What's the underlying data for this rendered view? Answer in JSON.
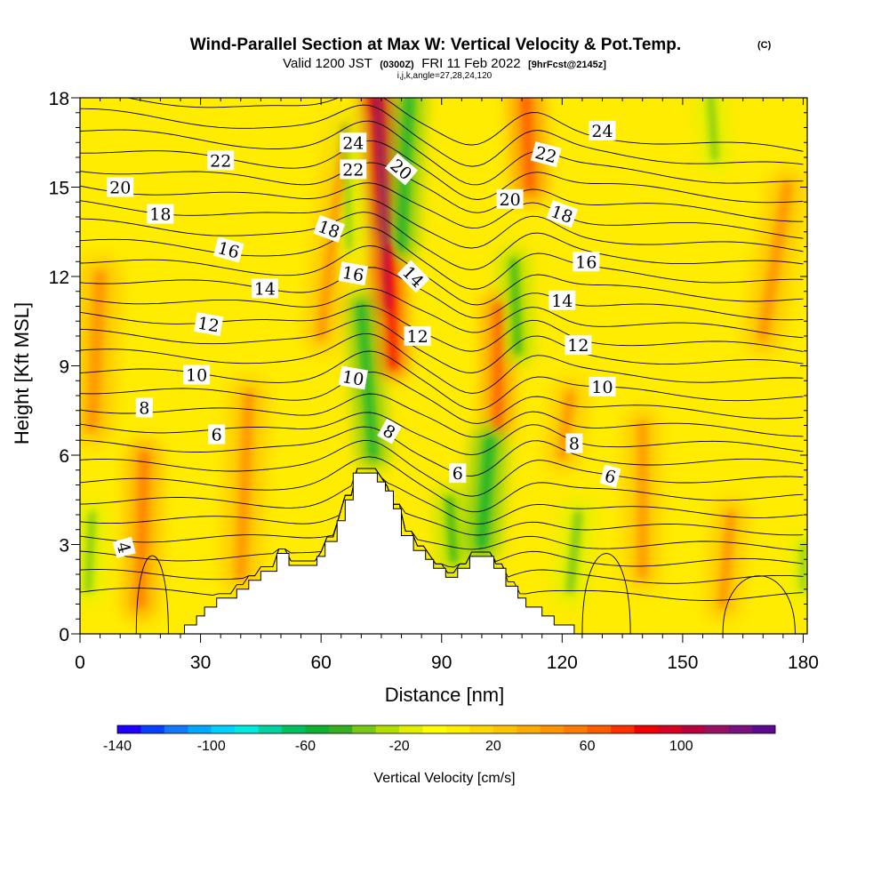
{
  "chart_data": {
    "type": "heatmap",
    "title": "Wind-Parallel Section at Max W: Vertical Velocity & Pot.Temp.",
    "title_mark": "(C)",
    "subtitle_parts": [
      "Valid 1200 JST",
      "(0300Z)",
      "FRI 11 Feb 2022",
      "[9hrFcst@2145z]"
    ],
    "subtitle2": "i,j,k,angle=27,28,24,120",
    "xlabel": "Distance [nm]",
    "ylabel": "Height [Kft MSL]",
    "xlim": [
      0,
      181
    ],
    "ylim": [
      0,
      18
    ],
    "x_ticks": [
      "0",
      "30",
      "60",
      "90",
      "120",
      "150",
      "180"
    ],
    "x_tick_values": [
      0,
      30,
      60,
      90,
      120,
      150,
      180
    ],
    "y_ticks": [
      "0",
      "3",
      "6",
      "9",
      "12",
      "15",
      "18"
    ],
    "y_tick_values": [
      0,
      3,
      6,
      9,
      12,
      15,
      18
    ],
    "colorbar": {
      "title": "Vertical Velocity [cm/s]",
      "min": -140,
      "max": 140,
      "step": 10,
      "tick_labels": [
        "-140",
        "-100",
        "-60",
        "-20",
        "20",
        "60",
        "100"
      ],
      "tick_values": [
        -140,
        -100,
        -60,
        -20,
        20,
        60,
        100
      ],
      "colors": [
        "#1f00ff",
        "#0840ff",
        "#1478ff",
        "#00a8ff",
        "#00d0ff",
        "#00e8e0",
        "#00d2a0",
        "#00c060",
        "#10b030",
        "#34b020",
        "#78c818",
        "#b4e000",
        "#e2f000",
        "#ffff00",
        "#fff000",
        "#ffd800",
        "#ffc400",
        "#ffac00",
        "#ff9400",
        "#ff7c00",
        "#ff5c00",
        "#ff3000",
        "#f00000",
        "#d80020",
        "#b80040",
        "#981060",
        "#7a1080",
        "#5c0a90"
      ]
    },
    "terrain_kft": [
      [
        0,
        0
      ],
      [
        26,
        0
      ],
      [
        26,
        0.3
      ],
      [
        29,
        0.3
      ],
      [
        29,
        0.6
      ],
      [
        31,
        0.6
      ],
      [
        31,
        0.9
      ],
      [
        34,
        0.9
      ],
      [
        34,
        1.2
      ],
      [
        39,
        1.2
      ],
      [
        39,
        1.5
      ],
      [
        42,
        1.5
      ],
      [
        42,
        1.8
      ],
      [
        45,
        1.8
      ],
      [
        45,
        2.1
      ],
      [
        49,
        2.1
      ],
      [
        49,
        2.7
      ],
      [
        52,
        2.7
      ],
      [
        52,
        2.3
      ],
      [
        59,
        2.3
      ],
      [
        59,
        2.6
      ],
      [
        61,
        2.6
      ],
      [
        61,
        3.1
      ],
      [
        64,
        3.1
      ],
      [
        64,
        3.8
      ],
      [
        66,
        3.8
      ],
      [
        66,
        4.5
      ],
      [
        68,
        4.5
      ],
      [
        68,
        5.4
      ],
      [
        74,
        5.4
      ],
      [
        74,
        5.1
      ],
      [
        76,
        5.1
      ],
      [
        76,
        4.8
      ],
      [
        78,
        4.8
      ],
      [
        78,
        4.2
      ],
      [
        80,
        4.2
      ],
      [
        80,
        3.3
      ],
      [
        83,
        3.3
      ],
      [
        83,
        2.8
      ],
      [
        86,
        2.8
      ],
      [
        86,
        2.5
      ],
      [
        88,
        2.5
      ],
      [
        88,
        2.2
      ],
      [
        91,
        2.2
      ],
      [
        91,
        1.9
      ],
      [
        94,
        1.9
      ],
      [
        94,
        2.2
      ],
      [
        97,
        2.2
      ],
      [
        97,
        2.6
      ],
      [
        103,
        2.6
      ],
      [
        103,
        2.2
      ],
      [
        106,
        2.2
      ],
      [
        106,
        1.6
      ],
      [
        109,
        1.6
      ],
      [
        109,
        1.2
      ],
      [
        111,
        1.2
      ],
      [
        111,
        0.9
      ],
      [
        115,
        0.9
      ],
      [
        115,
        0.6
      ],
      [
        118,
        0.6
      ],
      [
        118,
        0.3
      ],
      [
        123,
        0.3
      ],
      [
        123,
        0
      ],
      [
        181,
        0
      ]
    ],
    "updrafts": [
      {
        "x0": 77,
        "y0": 11,
        "x1": 74,
        "y1": 18,
        "w": 4,
        "value": 90
      },
      {
        "x0": 78,
        "y0": 9,
        "x1": 77,
        "y1": 13,
        "w": 3,
        "value": 60
      },
      {
        "x0": 104,
        "y0": 7,
        "x1": 104,
        "y1": 11,
        "w": 4,
        "value": 40
      },
      {
        "x0": 112,
        "y0": 15,
        "x1": 111,
        "y1": 18,
        "w": 5,
        "value": 40
      },
      {
        "x0": 15,
        "y0": 1,
        "x1": 16,
        "y1": 6,
        "w": 5,
        "value": 30
      },
      {
        "x0": 3,
        "y0": 7,
        "x1": 5,
        "y1": 12,
        "w": 7,
        "value": 20
      },
      {
        "x0": 40,
        "y0": 2,
        "x1": 42,
        "y1": 8,
        "w": 6,
        "value": 20
      },
      {
        "x0": 60,
        "y0": 10,
        "x1": 66,
        "y1": 17,
        "w": 5,
        "value": 20
      },
      {
        "x0": 140,
        "y0": 2,
        "x1": 140,
        "y1": 7,
        "w": 5,
        "value": 20
      },
      {
        "x0": 160,
        "y0": 1,
        "x1": 162,
        "y1": 4,
        "w": 5,
        "value": 20
      },
      {
        "x0": 170,
        "y0": 10,
        "x1": 176,
        "y1": 15,
        "w": 6,
        "value": 20
      },
      {
        "x0": 120,
        "y0": 6,
        "x1": 122,
        "y1": 8,
        "w": 5,
        "value": 20
      }
    ],
    "downdrafts": [
      {
        "x0": 73,
        "y0": 6,
        "x1": 70,
        "y1": 11,
        "w": 4,
        "value": -40
      },
      {
        "x0": 80,
        "y0": 13,
        "x1": 82,
        "y1": 18,
        "w": 4,
        "value": -40
      },
      {
        "x0": 100,
        "y0": 3,
        "x1": 102,
        "y1": 6.5,
        "w": 5,
        "value": -40
      },
      {
        "x0": 93,
        "y0": 2.5,
        "x1": 92,
        "y1": 4.5,
        "w": 4,
        "value": -30
      },
      {
        "x0": 109,
        "y0": 9.5,
        "x1": 108,
        "y1": 12.5,
        "w": 4,
        "value": -30
      },
      {
        "x0": 122,
        "y0": 1.5,
        "x1": 124,
        "y1": 4,
        "w": 5,
        "value": -20
      },
      {
        "x0": 2,
        "y0": 1.5,
        "x1": 3,
        "y1": 4,
        "w": 4,
        "value": -20
      },
      {
        "x0": 67,
        "y0": 13,
        "x1": 66,
        "y1": 17,
        "w": 3,
        "value": -20
      },
      {
        "x0": 158,
        "y0": 16,
        "x1": 157,
        "y1": 18,
        "w": 4,
        "value": -20
      },
      {
        "x0": 180,
        "y0": 1.5,
        "x1": 180,
        "y1": 3,
        "w": 3,
        "value": -20
      }
    ],
    "contour_labels": [
      {
        "text": "24",
        "x": 68,
        "y": 16.5,
        "angle": 0
      },
      {
        "text": "22",
        "x": 35,
        "y": 15.9,
        "angle": 0
      },
      {
        "text": "22",
        "x": 68,
        "y": 15.6,
        "angle": 0
      },
      {
        "text": "20",
        "x": 10,
        "y": 15.0,
        "angle": 0
      },
      {
        "text": "20",
        "x": 80,
        "y": 15.6,
        "angle": 40
      },
      {
        "text": "18",
        "x": 20,
        "y": 14.1,
        "angle": 0
      },
      {
        "text": "18",
        "x": 62,
        "y": 13.6,
        "angle": 20
      },
      {
        "text": "16",
        "x": 37,
        "y": 12.9,
        "angle": 15
      },
      {
        "text": "16",
        "x": 68,
        "y": 12.1,
        "angle": 10
      },
      {
        "text": "14",
        "x": 46,
        "y": 11.6,
        "angle": 0
      },
      {
        "text": "14",
        "x": 83,
        "y": 12.0,
        "angle": 45
      },
      {
        "text": "12",
        "x": 32,
        "y": 10.4,
        "angle": 10
      },
      {
        "text": "12",
        "x": 84,
        "y": 10.0,
        "angle": 0
      },
      {
        "text": "10",
        "x": 29,
        "y": 8.7,
        "angle": 0
      },
      {
        "text": "10",
        "x": 68,
        "y": 8.6,
        "angle": 10
      },
      {
        "text": "8",
        "x": 16,
        "y": 7.6,
        "angle": 0
      },
      {
        "text": "8",
        "x": 77,
        "y": 6.8,
        "angle": 30
      },
      {
        "text": "6",
        "x": 34,
        "y": 6.7,
        "angle": 0
      },
      {
        "text": "6",
        "x": 94,
        "y": 5.4,
        "angle": 0
      },
      {
        "text": "4",
        "x": 11,
        "y": 2.9,
        "angle": 75
      },
      {
        "text": "24",
        "x": 130,
        "y": 16.9,
        "angle": 0
      },
      {
        "text": "22",
        "x": 116,
        "y": 16.1,
        "angle": 15
      },
      {
        "text": "20",
        "x": 107,
        "y": 14.6,
        "angle": 0
      },
      {
        "text": "18",
        "x": 120,
        "y": 14.1,
        "angle": 20
      },
      {
        "text": "16",
        "x": 126,
        "y": 12.5,
        "angle": 0
      },
      {
        "text": "14",
        "x": 120,
        "y": 11.2,
        "angle": 0
      },
      {
        "text": "12",
        "x": 124,
        "y": 9.7,
        "angle": 0
      },
      {
        "text": "10",
        "x": 130,
        "y": 8.3,
        "angle": 0
      },
      {
        "text": "8",
        "x": 123,
        "y": 6.4,
        "angle": 0
      },
      {
        "text": "6",
        "x": 132,
        "y": 5.3,
        "angle": 15
      }
    ]
  }
}
